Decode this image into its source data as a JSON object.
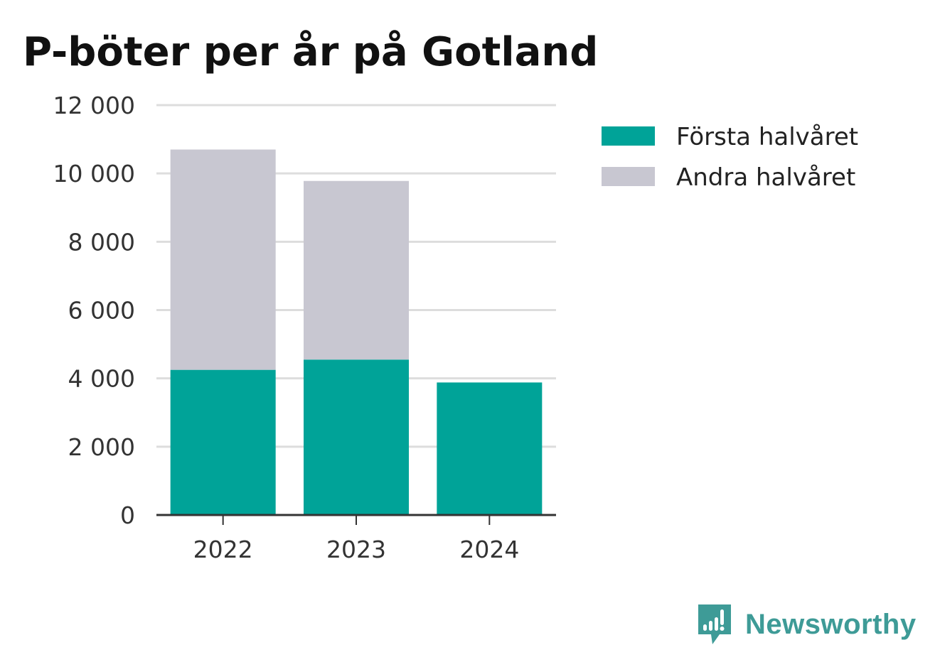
{
  "chart_data": {
    "type": "bar",
    "stacked": true,
    "title": "P-böter per år på Gotland",
    "xlabel": "",
    "ylabel": "",
    "categories": [
      "2022",
      "2023",
      "2024"
    ],
    "series": [
      {
        "name": "Första halvåret",
        "color": "#00a398",
        "values": [
          4250,
          4550,
          3880
        ]
      },
      {
        "name": "Andra halvåret",
        "color": "#c8c7d1",
        "values": [
          6450,
          5230,
          0
        ]
      }
    ],
    "ylim": [
      0,
      12000
    ],
    "yticks": [
      0,
      2000,
      4000,
      6000,
      8000,
      10000,
      12000
    ],
    "ytick_labels": [
      "0",
      "2 000",
      "4 000",
      "6 000",
      "8 000",
      "10 000",
      "12 000"
    ],
    "grid": true,
    "legend_position": "top-right"
  },
  "brand": {
    "name": "Newsworthy",
    "icon": "newsworthy-logo-icon",
    "color": "#3e9b97"
  }
}
